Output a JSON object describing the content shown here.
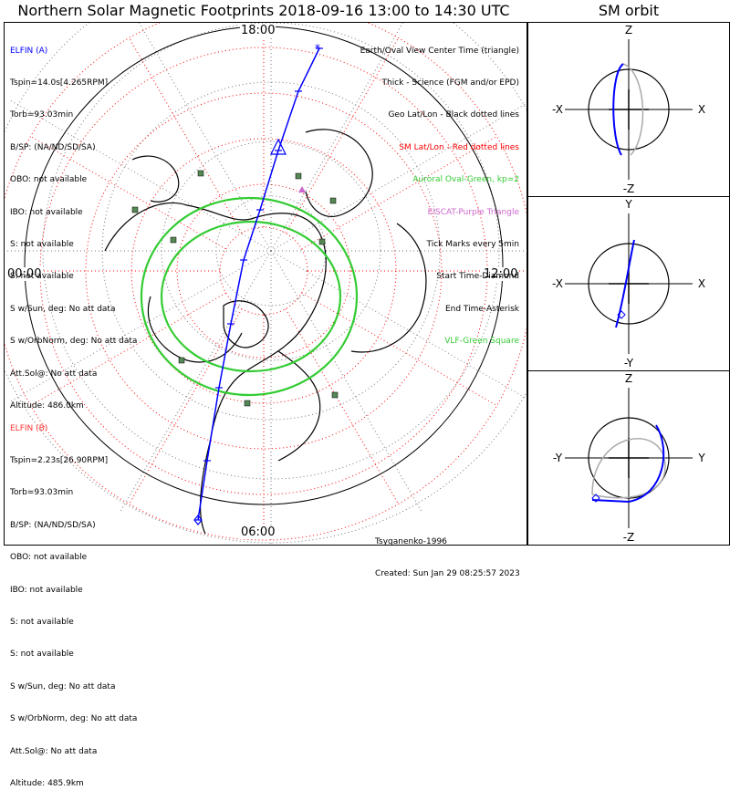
{
  "title": "Northern Solar Magnetic Footprints 2018-09-16 13:00 to 14:30 UTC",
  "sm_orbit_title": "SM orbit",
  "time_labels": {
    "top": "18:00",
    "left": "00:00",
    "right": "12:00",
    "bottom": "06:00"
  },
  "elfin_a": {
    "name": "ELFIN (A)",
    "lines": [
      "Tspin=14.0s[4.265RPM]",
      "Torb=93.03min",
      "B/SP: (NA/ND/SD/SA)",
      "OBO: not available",
      "IBO: not available",
      "S: not available",
      "S: not available",
      "S w/Sun, deg: No att data",
      "S w/OrbNorm, deg: No att data",
      "Att.Sol@: No att data",
      "Altitude: 486.0km"
    ],
    "color": "#0000ff"
  },
  "elfin_b": {
    "name": "ELFIN (B)",
    "lines": [
      "Tspin=2.23s[26.90RPM]",
      "Torb=93.03min",
      "B/SP: (NA/ND/SD/SA)",
      "OBO: not available",
      "IBO: not available",
      "S: not available",
      "S: not available",
      "S w/Sun, deg: No att data",
      "S w/OrbNorm, deg: No att data",
      "Att.Sol@: No att data",
      "Altitude: 485.9km"
    ],
    "color": "#ff3333"
  },
  "legend": [
    {
      "text": "Earth/Oval View Center Time (triangle)",
      "color": "#000000"
    },
    {
      "text": "Thick - Science (FGM and/or EPD)",
      "color": "#000000"
    },
    {
      "text": "Geo Lat/Lon - Black dotted lines",
      "color": "#000000"
    },
    {
      "text": "SM Lat/Lon - Red dotted lines",
      "color": "#ff0000"
    },
    {
      "text": "Auroral Oval-Green, kp=2",
      "color": "#33cc33"
    },
    {
      "text": "EISCAT-Purple Triangle",
      "color": "#cc66cc"
    },
    {
      "text": "Tick Marks every 5min",
      "color": "#000000"
    },
    {
      "text": "Start Time-Diamond",
      "color": "#000000"
    },
    {
      "text": "End Time-Asterisk",
      "color": "#000000"
    },
    {
      "text": "VLF-Green Square",
      "color": "#33cc33"
    }
  ],
  "credits": [
    "Tsyganenko-1996",
    "Created: Sun Jan 29 08:25:57 2023"
  ],
  "orbit_panels": [
    {
      "id": "xz",
      "left_label": "-X",
      "right_label": "X",
      "top_label": "Z",
      "bottom_label": "-Z"
    },
    {
      "id": "xy",
      "left_label": "-X",
      "right_label": "X",
      "top_label": "Y",
      "bottom_label": "-Y"
    },
    {
      "id": "yz",
      "left_label": "-Y",
      "right_label": "Y",
      "top_label": "Z",
      "bottom_label": "-Z"
    }
  ],
  "colors": {
    "track": "#0000ff",
    "oval": "#33cc33",
    "sm_grid": "#ff0000",
    "orbit_grey": "#aaaaaa"
  },
  "chart_data": {
    "type": "polar-map",
    "projection": "north polar, SM coordinates",
    "time_range_utc": [
      "2018-09-16 13:00",
      "2018-09-16 14:30"
    ],
    "mlt_labels": [
      "18:00",
      "12:00",
      "06:00",
      "00:00"
    ],
    "auroral_oval_kp": 2,
    "tick_interval_min": 5,
    "footprint_track_elfin_a": {
      "approx_mlt_start": "06:00",
      "approx_mlt_end": "18:00"
    }
  }
}
